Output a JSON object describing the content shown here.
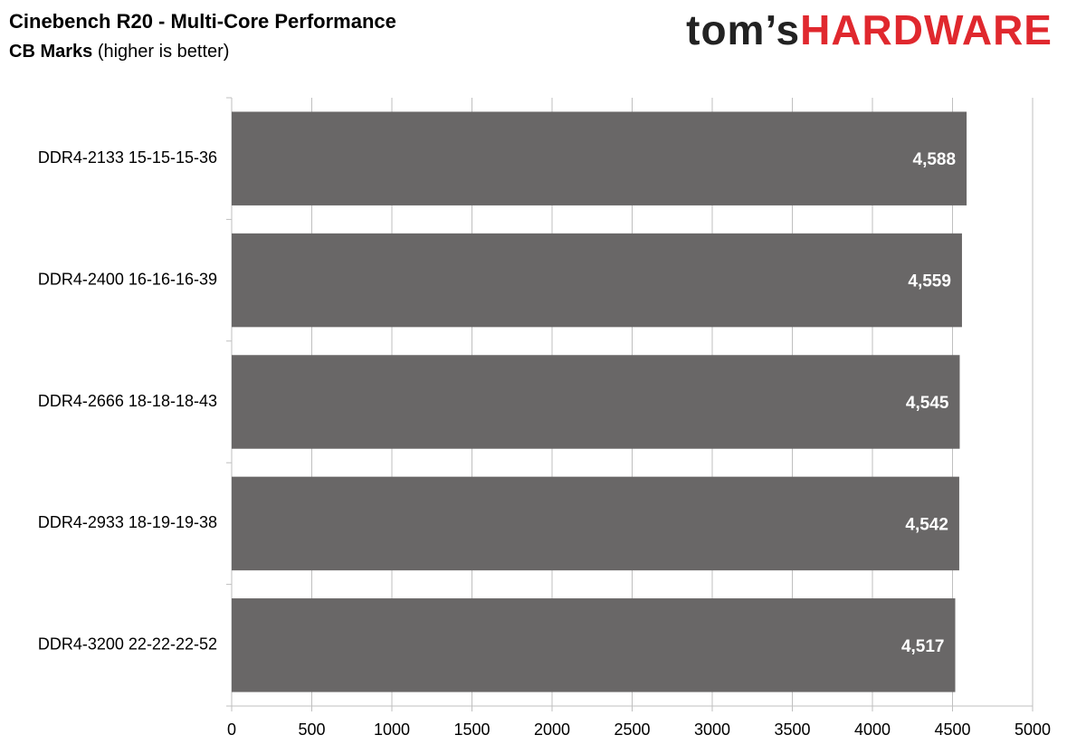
{
  "chart_data": {
    "type": "hbar",
    "title": "Cinebench R20 - Multi-Core Performance",
    "subtitle": "CB Marks",
    "subtitle_note": "(higher is better)",
    "logo": {
      "prefix": "tom’s",
      "name": "HARDWARE"
    },
    "categories": [
      "DDR4-2133 15-15-15-36",
      "DDR4-2400 16-16-16-39",
      "DDR4-2666 18-18-18-43",
      "DDR4-2933 18-19-19-38",
      "DDR4-3200 22-22-22-52"
    ],
    "values": [
      4588,
      4559,
      4545,
      4542,
      4517
    ],
    "value_labels": [
      "4,588",
      "4,559",
      "4,545",
      "4,542",
      "4,517"
    ],
    "color": "#696767",
    "xlim": [
      0,
      5000
    ],
    "xticks": [
      0,
      500,
      1000,
      1500,
      2000,
      2500,
      3000,
      3500,
      4000,
      4500,
      5000
    ],
    "grid": true
  }
}
